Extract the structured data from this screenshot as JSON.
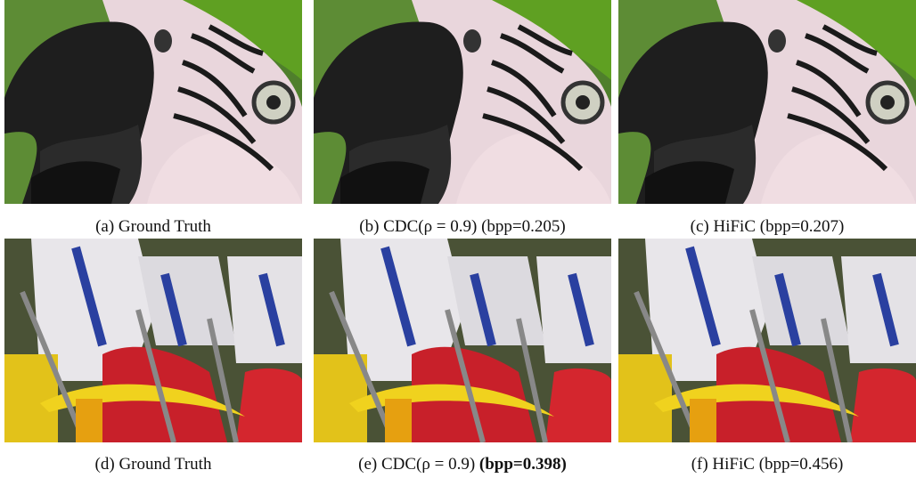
{
  "figure": {
    "panels": [
      {
        "label": "(a)",
        "text": "Ground Truth"
      },
      {
        "label": "(b)",
        "text": "CDC(ρ = 0.9) (bpp=0.205)"
      },
      {
        "label": "(c)",
        "text": "HiFiC (bpp=0.207)"
      },
      {
        "label": "(d)",
        "text": "Ground Truth"
      },
      {
        "label": "(e)",
        "text": "CDC(ρ = 0.9)",
        "bold": "(bpp=0.398)"
      },
      {
        "label": "(f)",
        "text": "HiFiC (bpp=0.456)"
      }
    ]
  }
}
